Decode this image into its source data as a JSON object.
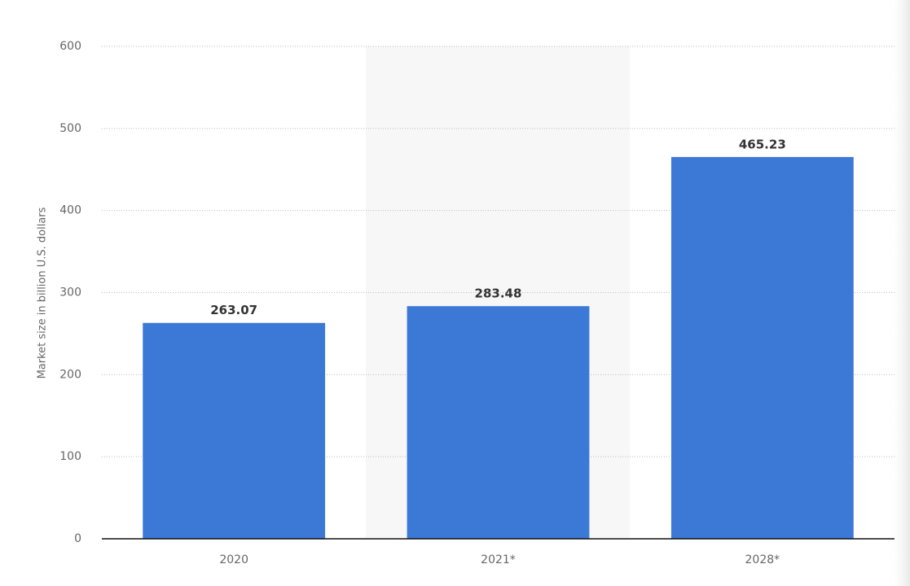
{
  "chart_data": {
    "type": "bar",
    "y_label": "Market size in billion U.S. dollars",
    "categories": [
      "2020",
      "2021*",
      "2028*"
    ],
    "values": [
      263.07,
      283.48,
      465.23
    ],
    "color": "#3c78d6",
    "ylim": [
      0,
      600
    ],
    "yticks": [
      0,
      100,
      200,
      300,
      400,
      500,
      600
    ],
    "grid": true
  }
}
